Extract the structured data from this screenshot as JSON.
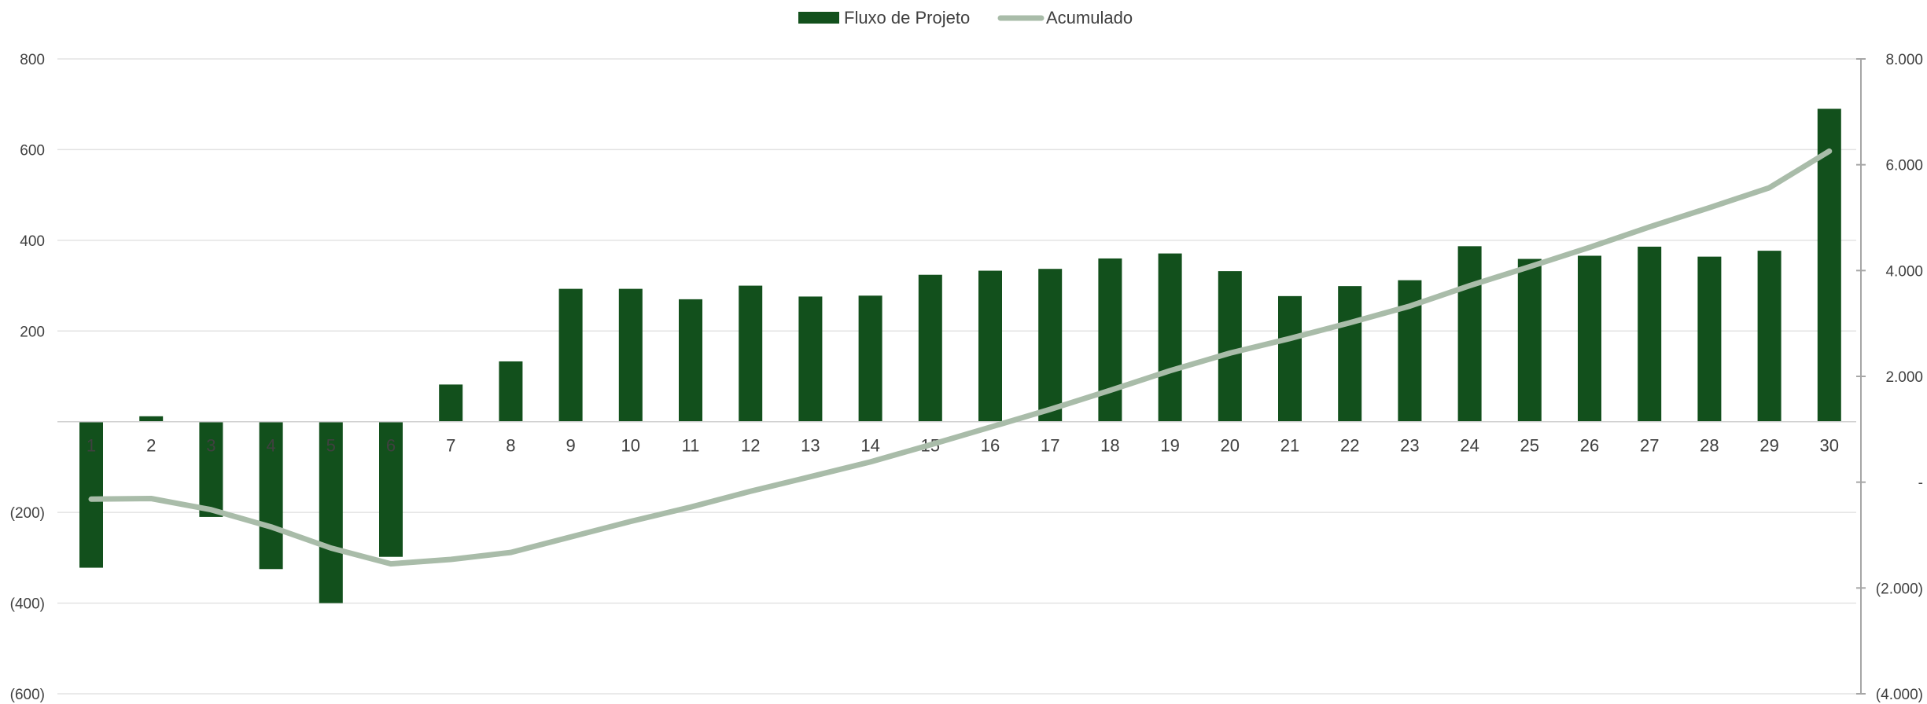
{
  "chart_data": {
    "type": "bar",
    "title": "",
    "xlabel": "",
    "ylabel": "",
    "legend_position": "top-center",
    "grid": true,
    "categories": [
      "1",
      "2",
      "3",
      "4",
      "5",
      "6",
      "7",
      "8",
      "9",
      "10",
      "11",
      "12",
      "13",
      "14",
      "15",
      "16",
      "17",
      "18",
      "19",
      "20",
      "21",
      "22",
      "23",
      "24",
      "25",
      "26",
      "27",
      "28",
      "29",
      "30"
    ],
    "series": [
      {
        "name": "Fluxo de Projeto",
        "type": "bar",
        "axis": "left",
        "color": "#12501c",
        "values": [
          -322,
          12,
          -210,
          -325,
          -400,
          -298,
          82,
          133,
          293,
          293,
          270,
          300,
          276,
          278,
          324,
          333,
          337,
          360,
          371,
          332,
          277,
          299,
          312,
          387,
          359,
          366,
          386,
          364,
          377,
          690
        ]
      },
      {
        "name": "Acumulado",
        "type": "line",
        "axis": "right",
        "color": "#a9bca9",
        "values": [
          -322,
          -310,
          -520,
          -845,
          -1245,
          -1543,
          -1461,
          -1328,
          -1035,
          -742,
          -472,
          -172,
          104,
          382,
          706,
          1039,
          1376,
          1736,
          2107,
          2439,
          2716,
          3015,
          3327,
          3714,
          4073,
          4439,
          4825,
          5189,
          5566,
          6256
        ]
      }
    ],
    "y_left": {
      "ylim": [
        -600,
        800
      ],
      "ticks": [
        800,
        600,
        400,
        200,
        -200,
        -400,
        -600
      ],
      "tick_labels": [
        "800",
        "600",
        "400",
        "200",
        "(200)",
        "(400)",
        "(600)"
      ]
    },
    "y_right": {
      "ylim": [
        -4000,
        8000
      ],
      "ticks": [
        8000,
        6000,
        4000,
        2000,
        0,
        -2000,
        -4000
      ],
      "tick_labels": [
        "8.000",
        "6.000",
        "4.000",
        "2.000",
        "-",
        "(2.000)",
        "(4.000)"
      ]
    }
  }
}
